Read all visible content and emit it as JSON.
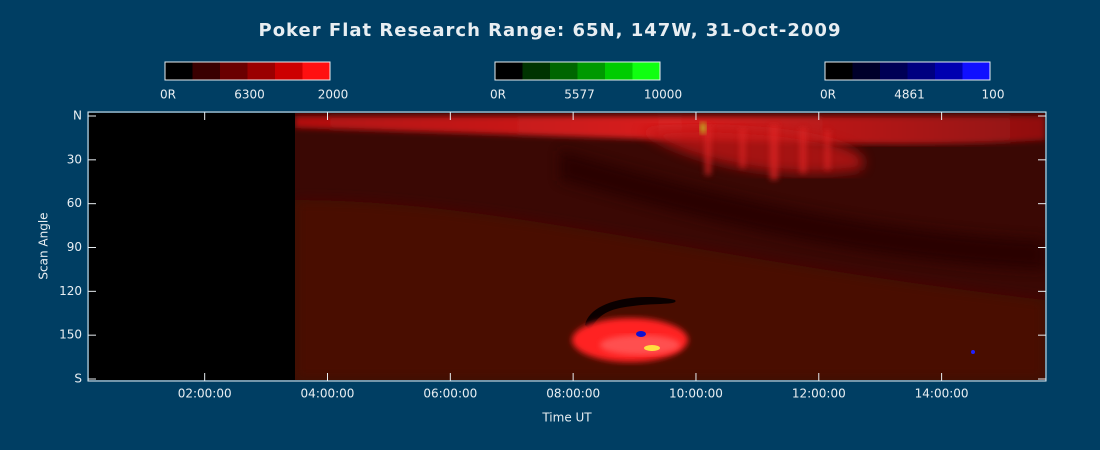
{
  "chart_data": {
    "type": "keogram",
    "title": "Poker Flat Research Range: 65N, 147W, 31-Oct-2009",
    "xlabel": "Time UT",
    "ylabel": "Scan Angle",
    "xlim": [
      0.1,
      15.7
    ],
    "xticks": [
      {
        "value": 2,
        "label": "02:00:00"
      },
      {
        "value": 4,
        "label": "04:00:00"
      },
      {
        "value": 6,
        "label": "06:00:00"
      },
      {
        "value": 8,
        "label": "08:00:00"
      },
      {
        "value": 10,
        "label": "10:00:00"
      },
      {
        "value": 12,
        "label": "12:00:00"
      },
      {
        "value": 14,
        "label": "14:00:00"
      }
    ],
    "ylim": [
      0,
      180
    ],
    "yticks": [
      {
        "value": 0,
        "label": "N"
      },
      30,
      60,
      90,
      120,
      150,
      {
        "value": 180,
        "label": "S"
      }
    ],
    "colorbars": [
      {
        "labels": [
          "0R",
          "6300",
          "2000"
        ],
        "colors": [
          "#000000",
          "#3a0000",
          "#6a0000",
          "#9a0000",
          "#cc0000",
          "#ff1010"
        ]
      },
      {
        "labels": [
          "0R",
          "5577",
          "10000"
        ],
        "colors": [
          "#000000",
          "#003300",
          "#006600",
          "#009900",
          "#00cc00",
          "#10ff10"
        ]
      },
      {
        "labels": [
          "0R",
          "4861",
          "100"
        ],
        "colors": [
          "#000000",
          "#00002a",
          "#000055",
          "#000080",
          "#0000b0",
          "#1010ff"
        ]
      }
    ]
  }
}
